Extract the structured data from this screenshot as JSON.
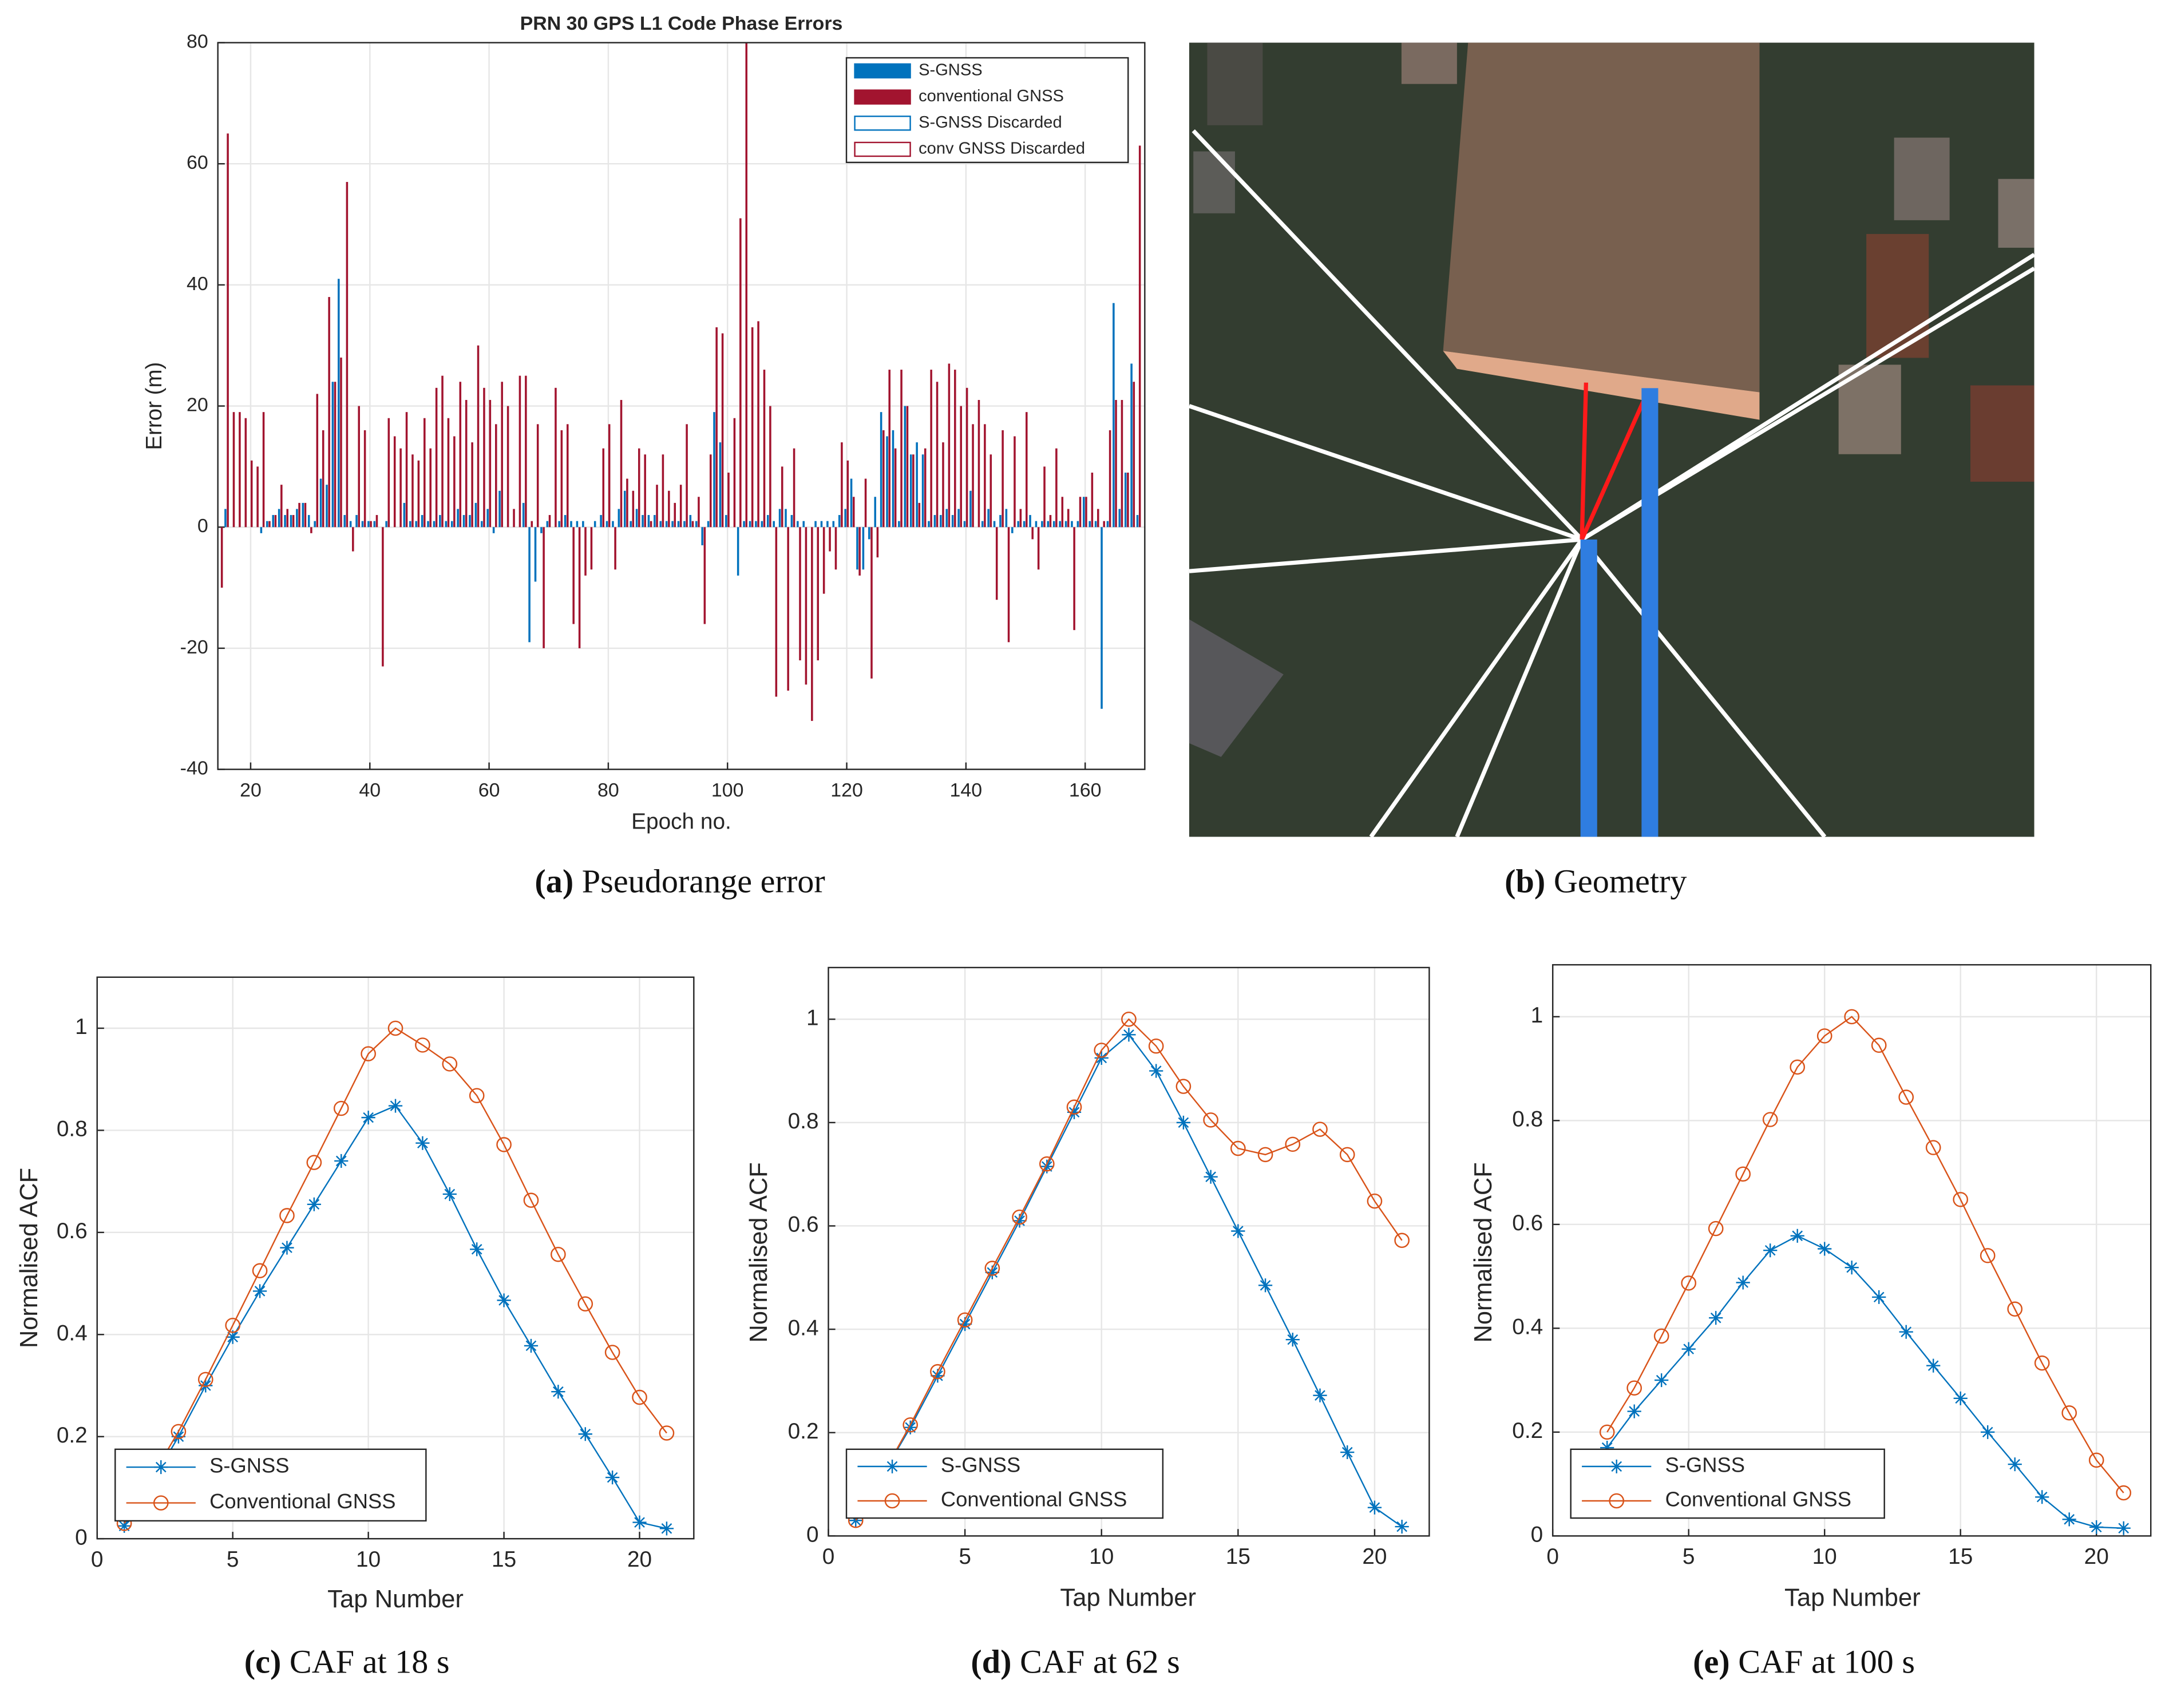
{
  "chart_data": [
    {
      "type": "bar",
      "title": "PRN 30 GPS L1 Code Phase Errors",
      "x_label": "Epoch no.",
      "y_label": "Error (m)",
      "caption_label": "(a)",
      "caption": "Pseudorange error",
      "x": [
        15,
        16,
        17,
        18,
        19,
        20,
        21,
        22,
        23,
        24,
        25,
        26,
        27,
        28,
        29,
        30,
        31,
        32,
        33,
        34,
        35,
        36,
        37,
        38,
        39,
        40,
        41,
        42,
        43,
        44,
        45,
        46,
        47,
        48,
        49,
        50,
        51,
        52,
        53,
        54,
        55,
        56,
        57,
        58,
        59,
        60,
        61,
        62,
        63,
        64,
        65,
        66,
        67,
        68,
        69,
        70,
        71,
        72,
        73,
        74,
        75,
        76,
        77,
        78,
        79,
        80,
        81,
        82,
        83,
        84,
        85,
        86,
        87,
        88,
        89,
        90,
        91,
        92,
        93,
        94,
        95,
        96,
        97,
        98,
        99,
        100,
        101,
        102,
        103,
        104,
        105,
        106,
        107,
        108,
        109,
        110,
        111,
        112,
        113,
        114,
        115,
        116,
        117,
        118,
        119,
        120,
        121,
        122,
        123,
        124,
        125,
        126,
        127,
        128,
        129,
        130,
        131,
        132,
        133,
        134,
        135,
        136,
        137,
        138,
        139,
        140,
        141,
        142,
        143,
        144,
        145,
        146,
        147,
        148,
        149,
        150,
        151,
        152,
        153,
        154,
        155,
        156,
        157,
        158,
        159,
        160,
        161,
        162,
        163,
        164,
        165,
        166,
        167,
        168,
        169
      ],
      "series": [
        {
          "name": "S-GNSS",
          "color": "#0072bd",
          "values": [
            0,
            3,
            0,
            0,
            0,
            0,
            0,
            -1,
            1,
            2,
            3,
            2,
            2,
            3,
            4,
            2,
            1,
            8,
            7,
            24,
            41,
            2,
            1,
            2,
            1,
            1,
            1,
            0,
            1,
            0,
            0,
            4,
            1,
            1,
            2,
            1,
            1,
            2,
            1,
            1,
            3,
            2,
            2,
            4,
            1,
            3,
            -1,
            6,
            0,
            0,
            0,
            4,
            -19,
            -9,
            -1,
            1,
            0,
            1,
            2,
            1,
            1,
            1,
            0,
            1,
            2,
            1,
            1,
            3,
            6,
            1,
            3,
            2,
            2,
            2,
            1,
            1,
            1,
            1,
            1,
            2,
            1,
            -3,
            1,
            19,
            14,
            2,
            0,
            -8,
            1,
            1,
            1,
            1,
            2,
            1,
            3,
            3,
            2,
            1,
            1,
            0,
            1,
            1,
            1,
            1,
            2,
            3,
            8,
            -7,
            -7,
            -2,
            5,
            19,
            15,
            16,
            1,
            20,
            12,
            14,
            12,
            1,
            2,
            2,
            3,
            2,
            3,
            1,
            6,
            0,
            1,
            3,
            1,
            2,
            3,
            -1,
            1,
            1,
            2,
            1,
            1,
            1,
            1,
            1,
            1,
            1,
            1,
            5,
            1,
            1,
            -30,
            1,
            37,
            3,
            9,
            27,
            2
          ]
        },
        {
          "name": "conventional GNSS",
          "color": "#a2142f",
          "values": [
            -10,
            65,
            19,
            19,
            18,
            11,
            10,
            19,
            1,
            2,
            7,
            3,
            2,
            4,
            4,
            -1,
            22,
            16,
            38,
            24,
            28,
            57,
            -4,
            20,
            16,
            1,
            2,
            -23,
            18,
            15,
            13,
            19,
            12,
            11,
            18,
            13,
            23,
            25,
            18,
            15,
            24,
            21,
            14,
            30,
            23,
            21,
            17,
            24,
            20,
            3,
            25,
            25,
            1,
            17,
            -20,
            2,
            23,
            16,
            17,
            -16,
            -20,
            -8,
            -7,
            0,
            13,
            17,
            -7,
            21,
            8,
            6,
            13,
            12,
            1,
            7,
            12,
            6,
            4,
            7,
            17,
            1,
            5,
            -16,
            12,
            33,
            32,
            9,
            18,
            51,
            80,
            33,
            34,
            26,
            20,
            -28,
            10,
            -27,
            13,
            -22,
            -26,
            -32,
            -22,
            -11,
            -4,
            -7,
            14,
            11,
            5,
            -8,
            8,
            -25,
            -5,
            16,
            26,
            13,
            26,
            20,
            12,
            4,
            13,
            26,
            24,
            14,
            27,
            26,
            20,
            23,
            17,
            21,
            17,
            12,
            -12,
            16,
            -19,
            15,
            3,
            19,
            -2,
            -7,
            10,
            2,
            13,
            5,
            3,
            -17,
            5,
            5,
            9,
            3,
            1,
            16,
            21,
            21,
            9,
            24,
            63
          ]
        }
      ],
      "legend_only": [
        {
          "name": "S-GNSS Discarded",
          "color": "#0072bd",
          "style": "outline"
        },
        {
          "name": "conv GNSS Discarded",
          "color": "#a2142f",
          "style": "outline"
        }
      ],
      "xlim": [
        14.5,
        170
      ],
      "xticks": [
        20,
        40,
        60,
        80,
        100,
        120,
        140,
        160
      ],
      "ylim": [
        -40,
        80
      ],
      "yticks": [
        -40,
        -20,
        0,
        20,
        40,
        60,
        80
      ],
      "grid": true,
      "legend": "upper right"
    },
    {
      "type": "line",
      "x_label": "Tap Number",
      "y_label": "Normalised ACF",
      "caption_label": "(c)",
      "caption": "CAF at 18 s",
      "x": [
        1,
        2,
        3,
        4,
        5,
        6,
        7,
        8,
        9,
        10,
        11,
        12,
        13,
        14,
        15,
        16,
        17,
        18,
        19,
        20,
        21
      ],
      "series": [
        {
          "name": "S-GNSS",
          "color": "#0072bd",
          "marker": "asterisk",
          "values": [
            0.025,
            0.11,
            0.2,
            0.3,
            0.395,
            0.485,
            0.57,
            0.655,
            0.74,
            0.825,
            0.848,
            0.775,
            0.675,
            0.567,
            0.467,
            0.378,
            0.288,
            0.205,
            0.12,
            0.032,
            0.02
          ]
        },
        {
          "name": "Conventional GNSS",
          "color": "#d95319",
          "marker": "circle",
          "values": [
            0.03,
            0.12,
            0.21,
            0.312,
            0.418,
            0.525,
            0.633,
            0.737,
            0.843,
            0.95,
            1.0,
            0.967,
            0.93,
            0.868,
            0.772,
            0.663,
            0.557,
            0.46,
            0.365,
            0.277,
            0.207
          ]
        }
      ],
      "xlim": [
        0,
        22
      ],
      "xticks": [
        0,
        5,
        10,
        15,
        20
      ],
      "ylim": [
        0,
        1.1
      ],
      "yticks": [
        0,
        0.2,
        0.4,
        0.6,
        0.8,
        1
      ],
      "grid": true,
      "legend": "lower left"
    },
    {
      "type": "line",
      "x_label": "Tap Number",
      "y_label": "Normalised ACF",
      "caption_label": "(d)",
      "caption": "CAF at 62 s",
      "x": [
        1,
        2,
        3,
        4,
        5,
        6,
        7,
        8,
        9,
        10,
        11,
        12,
        13,
        14,
        15,
        16,
        17,
        18,
        19,
        20,
        21
      ],
      "series": [
        {
          "name": "S-GNSS",
          "color": "#0072bd",
          "marker": "asterisk",
          "values": [
            0.03,
            0.12,
            0.21,
            0.31,
            0.41,
            0.51,
            0.61,
            0.715,
            0.82,
            0.925,
            0.97,
            0.9,
            0.8,
            0.695,
            0.59,
            0.485,
            0.38,
            0.272,
            0.162,
            0.055,
            0.018
          ]
        },
        {
          "name": "Conventional GNSS",
          "color": "#d95319",
          "marker": "circle",
          "values": [
            0.03,
            0.12,
            0.215,
            0.318,
            0.418,
            0.518,
            0.617,
            0.72,
            0.83,
            0.94,
            1.0,
            0.948,
            0.87,
            0.805,
            0.75,
            0.738,
            0.758,
            0.787,
            0.738,
            0.648,
            0.572
          ]
        }
      ],
      "xlim": [
        0,
        22
      ],
      "xticks": [
        0,
        5,
        10,
        15,
        20
      ],
      "ylim": [
        0,
        1.1
      ],
      "yticks": [
        0,
        0.2,
        0.4,
        0.6,
        0.8,
        1
      ],
      "grid": true,
      "legend": "lower left"
    },
    {
      "type": "line",
      "x_label": "Tap Number",
      "y_label": "Normalised ACF",
      "caption_label": "(e)",
      "caption": "CAF at 100 s",
      "x": [
        2,
        3,
        4,
        5,
        6,
        7,
        8,
        9,
        10,
        11,
        12,
        13,
        14,
        15,
        16,
        17,
        18,
        19,
        20,
        21
      ],
      "series": [
        {
          "name": "S-GNSS",
          "color": "#0072bd",
          "marker": "asterisk",
          "values": [
            0.17,
            0.24,
            0.3,
            0.36,
            0.42,
            0.488,
            0.55,
            0.578,
            0.553,
            0.517,
            0.46,
            0.393,
            0.328,
            0.265,
            0.2,
            0.138,
            0.075,
            0.032,
            0.017,
            0.015
          ]
        },
        {
          "name": "Conventional GNSS",
          "color": "#d95319",
          "marker": "circle",
          "values": [
            0.2,
            0.285,
            0.385,
            0.487,
            0.592,
            0.697,
            0.802,
            0.903,
            0.963,
            1.0,
            0.945,
            0.845,
            0.748,
            0.648,
            0.54,
            0.437,
            0.333,
            0.237,
            0.146,
            0.083
          ]
        }
      ],
      "xlim": [
        0,
        22
      ],
      "xticks": [
        0,
        5,
        10,
        15,
        20
      ],
      "ylim": [
        0,
        1.1
      ],
      "yticks": [
        0,
        0.2,
        0.4,
        0.6,
        0.8,
        1
      ],
      "grid": true,
      "legend": "lower left"
    }
  ],
  "panels": [
    {
      "caption_label": "(b)",
      "caption": "Geometry"
    }
  ]
}
